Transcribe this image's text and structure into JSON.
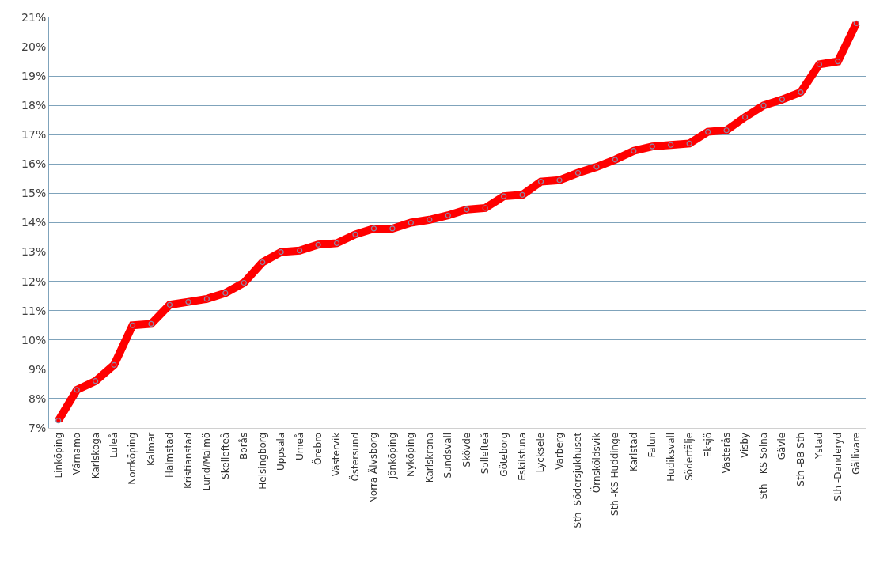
{
  "chart_data": {
    "type": "line",
    "categories": [
      "Linköping",
      "Värnamo",
      "Karlskoga",
      "Luleå",
      "Norrköping",
      "Kalmar",
      "Halmstad",
      "Kristianstad",
      "Lund/Malmö",
      "Skellefteå",
      "Borås",
      "Helsingborg",
      "Uppsala",
      "Umeå",
      "Örebro",
      "Västervik",
      "Östersund",
      "Norra Älvsborg",
      "Jönköping",
      "Nyköping",
      "Karlskrona",
      "Sundsvall",
      "Skövde",
      "Sollefteå",
      "Göteborg",
      "Eskilstuna",
      "Lycksele",
      "Varberg",
      "Sth -Södersjukhuset",
      "Örnsköldsvik",
      "Sth -KS Huddinge",
      "Karlstad",
      "Falun",
      "Hudiksvall",
      "Södertälje",
      "Eksjö",
      "Västerås",
      "Visby",
      "Sth - KS Solna",
      "Gävle",
      "Sth -BB Sth",
      "Ystad",
      "Sth -Danderyd",
      "Gällivare"
    ],
    "series": [
      {
        "color": "#ff0000",
        "values": [
          7.25,
          8.3,
          8.6,
          9.15,
          10.5,
          10.55,
          11.2,
          11.3,
          11.4,
          11.6,
          11.95,
          12.65,
          13.0,
          13.05,
          13.25,
          13.3,
          13.6,
          13.8,
          13.8,
          14.0,
          14.1,
          14.25,
          14.45,
          14.5,
          14.9,
          14.95,
          15.4,
          15.45,
          15.7,
          15.9,
          16.15,
          16.45,
          16.6,
          16.65,
          16.7,
          17.1,
          17.15,
          17.6,
          18.0,
          18.2,
          18.45,
          19.4,
          19.5,
          20.8
        ]
      }
    ],
    "ylim": [
      7,
      21
    ],
    "yticks": [
      {
        "value": 7,
        "label": "7%"
      },
      {
        "value": 8,
        "label": "8%"
      },
      {
        "value": 9,
        "label": "9%"
      },
      {
        "value": 10,
        "label": "10%"
      },
      {
        "value": 11,
        "label": "11%"
      },
      {
        "value": 12,
        "label": "12%"
      },
      {
        "value": 13,
        "label": "13%"
      },
      {
        "value": 14,
        "label": "14%"
      },
      {
        "value": 15,
        "label": "15%"
      },
      {
        "value": 16,
        "label": "16%"
      },
      {
        "value": 17,
        "label": "17%"
      },
      {
        "value": 18,
        "label": "18%"
      },
      {
        "value": 19,
        "label": "19%"
      },
      {
        "value": 20,
        "label": "20%"
      },
      {
        "value": 21,
        "label": "21%"
      }
    ],
    "grid": "y",
    "marker": "circle",
    "line_style": "solid"
  }
}
